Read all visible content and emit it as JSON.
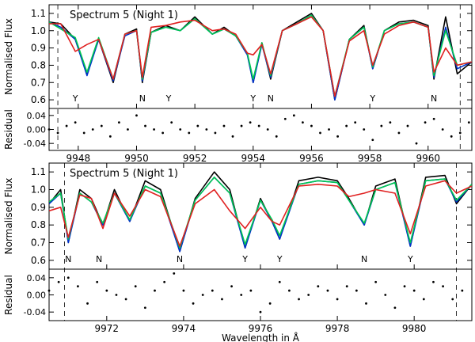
{
  "chart_data": [
    {
      "type": "line",
      "label": "Spectrum 5 (Night 1)",
      "ylabel": "Normalised Flux",
      "xlim": [
        9947.0,
        9961.5
      ],
      "ylim": [
        0.55,
        1.15
      ],
      "xticks": [
        9948,
        9950,
        9952,
        9954,
        9956,
        9958,
        9960
      ],
      "xtick_labels": [
        "9948",
        "9950",
        "9952",
        "9954",
        "9956",
        "9958",
        "9960"
      ],
      "yticks": [
        0.6,
        0.7,
        0.8,
        0.9,
        1.0,
        1.1
      ],
      "ytick_labels": [
        "0.6",
        "0.7",
        "0.8",
        "0.9",
        "1.0",
        "1.1"
      ],
      "vlines": [
        9947.3,
        9961.1
      ],
      "line_markers": [
        {
          "x": 9947.9,
          "label": "Y"
        },
        {
          "x": 9950.2,
          "label": "N"
        },
        {
          "x": 9951.1,
          "label": "Y"
        },
        {
          "x": 9954.0,
          "label": "Y"
        },
        {
          "x": 9954.6,
          "label": "N"
        },
        {
          "x": 9958.1,
          "label": "Y"
        },
        {
          "x": 9960.2,
          "label": "N"
        }
      ],
      "series": [
        {
          "color": "#000000",
          "x": [
            9947.0,
            9947.4,
            9947.9,
            9948.3,
            9948.7,
            9949.2,
            9949.6,
            9950.0,
            9950.2,
            9950.5,
            9951.0,
            9951.5,
            9952.0,
            9952.6,
            9953.0,
            9953.4,
            9953.8,
            9954.0,
            9954.3,
            9954.6,
            9955.0,
            9955.5,
            9956.0,
            9956.4,
            9956.8,
            9957.3,
            9957.8,
            9958.1,
            9958.5,
            9959.0,
            9959.5,
            9960.0,
            9960.2,
            9960.6,
            9961.0,
            9961.5
          ],
          "y": [
            1.05,
            1.04,
            0.95,
            0.75,
            0.95,
            0.7,
            0.98,
            1.01,
            0.7,
            0.99,
            1.03,
            1.0,
            1.08,
            0.98,
            1.02,
            0.97,
            0.87,
            0.7,
            0.93,
            0.72,
            1.0,
            1.05,
            1.1,
            1.0,
            0.6,
            0.95,
            1.03,
            0.78,
            1.0,
            1.05,
            1.06,
            1.03,
            0.72,
            1.08,
            0.75,
            0.82
          ]
        },
        {
          "color": "#0033cc",
          "x": [
            9947.0,
            9947.4,
            9947.9,
            9948.3,
            9948.7,
            9949.2,
            9949.6,
            9950.0,
            9950.2,
            9950.5,
            9951.0,
            9951.5,
            9952.0,
            9952.6,
            9953.0,
            9953.4,
            9953.8,
            9954.0,
            9954.3,
            9954.6,
            9955.0,
            9955.5,
            9956.0,
            9956.4,
            9956.8,
            9957.3,
            9957.8,
            9958.1,
            9958.5,
            9959.0,
            9959.5,
            9960.0,
            9960.2,
            9960.6,
            9961.0,
            9961.5
          ],
          "y": [
            1.05,
            1.02,
            0.95,
            0.74,
            0.95,
            0.71,
            0.97,
            1.0,
            0.71,
            0.99,
            1.02,
            1.0,
            1.07,
            0.98,
            1.01,
            0.97,
            0.86,
            0.7,
            0.92,
            0.73,
            1.0,
            1.04,
            1.09,
            1.0,
            0.6,
            0.95,
            1.02,
            0.78,
            1.0,
            1.04,
            1.05,
            1.02,
            0.73,
            1.02,
            0.78,
            0.82
          ]
        },
        {
          "color": "#00c850",
          "x": [
            9947.0,
            9947.4,
            9947.9,
            9948.3,
            9948.7,
            9949.2,
            9949.6,
            9950.0,
            9950.2,
            9950.5,
            9951.0,
            9951.5,
            9952.0,
            9952.6,
            9953.0,
            9953.4,
            9953.8,
            9954.0,
            9954.3,
            9954.6,
            9955.0,
            9955.5,
            9956.0,
            9956.4,
            9956.8,
            9957.3,
            9957.8,
            9958.1,
            9958.5,
            9959.0,
            9959.5,
            9960.0,
            9960.2,
            9960.6,
            9961.0,
            9961.5
          ],
          "y": [
            1.05,
            1.01,
            0.96,
            0.76,
            0.96,
            0.72,
            0.98,
            1.0,
            0.72,
            0.99,
            1.02,
            1.0,
            1.07,
            0.98,
            1.01,
            0.97,
            0.87,
            0.72,
            0.93,
            0.74,
            1.0,
            1.04,
            1.09,
            1.0,
            0.62,
            0.95,
            1.02,
            0.79,
            1.0,
            1.04,
            1.05,
            1.02,
            0.74,
            1.0,
            0.8,
            0.82
          ]
        },
        {
          "color": "#e02020",
          "x": [
            9947.0,
            9947.4,
            9947.9,
            9948.3,
            9948.7,
            9949.2,
            9949.6,
            9950.0,
            9950.2,
            9950.5,
            9951.0,
            9951.5,
            9952.0,
            9952.6,
            9953.0,
            9953.4,
            9953.8,
            9954.0,
            9954.3,
            9954.6,
            9955.0,
            9955.5,
            9956.0,
            9956.4,
            9956.8,
            9957.3,
            9957.8,
            9958.1,
            9958.5,
            9959.0,
            9959.5,
            9960.0,
            9960.2,
            9960.6,
            9961.0,
            9961.5
          ],
          "y": [
            1.04,
            1.04,
            0.88,
            0.92,
            0.95,
            0.72,
            0.98,
            1.0,
            0.73,
            1.02,
            1.03,
            1.05,
            1.06,
            1.0,
            1.01,
            0.98,
            0.87,
            0.86,
            0.92,
            0.75,
            1.0,
            1.04,
            1.08,
            1.0,
            0.62,
            0.94,
            1.0,
            0.8,
            0.98,
            1.03,
            1.05,
            1.02,
            0.76,
            0.9,
            0.8,
            0.82
          ]
        }
      ],
      "residual": {
        "ylabel": "Residual",
        "ylim": [
          -0.06,
          0.06
        ],
        "yticks": [
          0.04,
          0.0,
          -0.04
        ],
        "ytick_labels": [
          "0.04",
          "0.00",
          "-0.04"
        ],
        "x": [
          9947.0,
          9947.3,
          9947.6,
          9947.9,
          9948.2,
          9948.5,
          9948.8,
          9949.1,
          9949.4,
          9949.7,
          9950.0,
          9950.3,
          9950.6,
          9950.9,
          9951.2,
          9951.5,
          9951.8,
          9952.1,
          9952.4,
          9952.7,
          9953.0,
          9953.3,
          9953.6,
          9953.9,
          9954.2,
          9954.5,
          9954.8,
          9955.1,
          9955.4,
          9955.7,
          9956.0,
          9956.3,
          9956.6,
          9956.9,
          9957.2,
          9957.5,
          9957.8,
          9958.1,
          9958.4,
          9958.7,
          9959.0,
          9959.3,
          9959.6,
          9959.9,
          9960.2,
          9960.5,
          9960.8,
          9961.1,
          9961.4
        ],
        "y": [
          0.0,
          -0.01,
          0.01,
          0.02,
          -0.01,
          0.0,
          0.01,
          -0.02,
          0.02,
          0.0,
          0.04,
          0.01,
          0.0,
          -0.01,
          0.02,
          0.0,
          -0.01,
          0.01,
          0.0,
          -0.01,
          0.01,
          -0.02,
          0.01,
          0.02,
          0.01,
          0.0,
          -0.02,
          0.03,
          0.04,
          0.02,
          0.01,
          -0.01,
          0.0,
          -0.02,
          0.01,
          0.02,
          0.0,
          -0.03,
          0.01,
          0.02,
          -0.01,
          0.01,
          -0.04,
          0.02,
          0.03,
          0.0,
          -0.02,
          -0.01,
          0.02
        ]
      }
    },
    {
      "type": "line",
      "label": "Spectrum 5 (Night 1)",
      "ylabel": "Normalised Flux",
      "xlabel": "Wavelength in Å",
      "xlim": [
        9970.5,
        9981.5
      ],
      "ylim": [
        0.55,
        1.15
      ],
      "xticks": [
        9972,
        9974,
        9976,
        9978,
        9980
      ],
      "xtick_labels": [
        "9972",
        "9974",
        "9976",
        "9978",
        "9980"
      ],
      "yticks": [
        0.6,
        0.7,
        0.8,
        0.9,
        1.0,
        1.1
      ],
      "ytick_labels": [
        "0.6",
        "0.7",
        "0.8",
        "0.9",
        "1.0",
        "1.1"
      ],
      "vlines": [
        9970.9,
        9981.1
      ],
      "line_markers": [
        {
          "x": 9971.0,
          "label": "N"
        },
        {
          "x": 9971.8,
          "label": "N"
        },
        {
          "x": 9973.9,
          "label": "N"
        },
        {
          "x": 9975.6,
          "label": "Y"
        },
        {
          "x": 9976.5,
          "label": "Y"
        },
        {
          "x": 9978.7,
          "label": "N"
        },
        {
          "x": 9979.9,
          "label": "Y"
        }
      ],
      "series": [
        {
          "color": "#000000",
          "x": [
            9970.5,
            9970.8,
            9971.0,
            9971.3,
            9971.6,
            9971.9,
            9972.2,
            9972.6,
            9973.0,
            9973.4,
            9973.9,
            9974.3,
            9974.8,
            9975.2,
            9975.6,
            9976.0,
            9976.3,
            9976.5,
            9977.0,
            9977.5,
            9978.0,
            9978.3,
            9978.7,
            9979.0,
            9979.5,
            9979.9,
            9980.3,
            9980.8,
            9981.1,
            9981.5
          ],
          "y": [
            0.92,
            1.0,
            0.7,
            1.0,
            0.95,
            0.8,
            1.0,
            0.82,
            1.05,
            1.0,
            0.65,
            0.95,
            1.1,
            1.0,
            0.67,
            0.95,
            0.82,
            0.72,
            1.05,
            1.07,
            1.05,
            0.95,
            0.8,
            1.02,
            1.06,
            0.68,
            1.07,
            1.08,
            0.92,
            1.03
          ]
        },
        {
          "color": "#0033cc",
          "x": [
            9970.5,
            9970.8,
            9971.0,
            9971.3,
            9971.6,
            9971.9,
            9972.2,
            9972.6,
            9973.0,
            9973.4,
            9973.9,
            9974.3,
            9974.8,
            9975.2,
            9975.6,
            9976.0,
            9976.3,
            9976.5,
            9977.0,
            9977.5,
            9978.0,
            9978.3,
            9978.7,
            9979.0,
            9979.5,
            9979.9,
            9980.3,
            9980.8,
            9981.1,
            9981.5
          ],
          "y": [
            0.92,
            0.98,
            0.7,
            0.98,
            0.93,
            0.8,
            0.98,
            0.82,
            1.02,
            0.98,
            0.65,
            0.94,
            1.07,
            0.98,
            0.67,
            0.94,
            0.82,
            0.72,
            1.03,
            1.05,
            1.04,
            0.94,
            0.8,
            1.0,
            1.04,
            0.68,
            1.05,
            1.06,
            0.93,
            1.03
          ]
        },
        {
          "color": "#00c850",
          "x": [
            9970.5,
            9970.8,
            9971.0,
            9971.3,
            9971.6,
            9971.9,
            9972.2,
            9972.6,
            9973.0,
            9973.4,
            9973.9,
            9974.3,
            9974.8,
            9975.2,
            9975.6,
            9976.0,
            9976.3,
            9976.5,
            9977.0,
            9977.5,
            9978.0,
            9978.3,
            9978.7,
            9979.0,
            9979.5,
            9979.9,
            9980.3,
            9980.8,
            9981.1,
            9981.5
          ],
          "y": [
            0.93,
            0.98,
            0.72,
            0.98,
            0.93,
            0.81,
            0.98,
            0.83,
            1.02,
            0.98,
            0.67,
            0.94,
            1.07,
            0.98,
            0.69,
            0.94,
            0.83,
            0.74,
            1.03,
            1.05,
            1.04,
            0.94,
            0.81,
            1.0,
            1.04,
            0.7,
            1.05,
            1.06,
            0.94,
            1.03
          ]
        },
        {
          "color": "#e02020",
          "x": [
            9970.5,
            9970.8,
            9971.0,
            9971.3,
            9971.6,
            9971.9,
            9972.2,
            9972.6,
            9973.0,
            9973.4,
            9973.9,
            9974.3,
            9974.8,
            9975.2,
            9975.6,
            9976.0,
            9976.3,
            9976.5,
            9977.0,
            9977.5,
            9978.0,
            9978.3,
            9978.7,
            9979.0,
            9979.5,
            9979.9,
            9980.3,
            9980.8,
            9981.1,
            9981.5
          ],
          "y": [
            0.88,
            0.9,
            0.73,
            0.97,
            0.95,
            0.78,
            0.98,
            0.85,
            1.0,
            0.96,
            0.68,
            0.92,
            1.0,
            0.88,
            0.78,
            0.9,
            0.82,
            0.8,
            1.02,
            1.03,
            1.02,
            0.96,
            0.98,
            1.0,
            0.98,
            0.75,
            1.02,
            1.05,
            0.98,
            1.02
          ]
        }
      ],
      "residual": {
        "ylabel": "Residual",
        "ylim": [
          -0.06,
          0.06
        ],
        "yticks": [
          0.04,
          0.0,
          -0.04
        ],
        "ytick_labels": [
          "0.04",
          "0.00",
          "-0.04"
        ],
        "x": [
          9970.5,
          9970.75,
          9971.0,
          9971.25,
          9971.5,
          9971.75,
          9972.0,
          9972.25,
          9972.5,
          9972.75,
          9973.0,
          9973.25,
          9973.5,
          9973.75,
          9974.0,
          9974.25,
          9974.5,
          9974.75,
          9975.0,
          9975.25,
          9975.5,
          9975.75,
          9976.0,
          9976.25,
          9976.5,
          9976.75,
          9977.0,
          9977.25,
          9977.5,
          9977.75,
          9978.0,
          9978.25,
          9978.5,
          9978.75,
          9979.0,
          9979.25,
          9979.5,
          9979.75,
          9980.0,
          9980.25,
          9980.5,
          9980.75,
          9981.0,
          9981.25
        ],
        "y": [
          0.01,
          0.03,
          0.04,
          0.02,
          -0.02,
          0.03,
          0.01,
          0.0,
          -0.01,
          0.02,
          -0.03,
          0.01,
          0.03,
          0.05,
          0.01,
          -0.02,
          0.0,
          0.01,
          -0.01,
          0.02,
          0.0,
          0.01,
          -0.04,
          -0.02,
          0.03,
          0.01,
          -0.01,
          0.0,
          0.02,
          0.01,
          -0.01,
          0.02,
          0.01,
          -0.02,
          0.03,
          0.0,
          -0.03,
          0.02,
          0.01,
          -0.01,
          0.03,
          0.02,
          -0.01,
          0.01
        ]
      }
    }
  ]
}
